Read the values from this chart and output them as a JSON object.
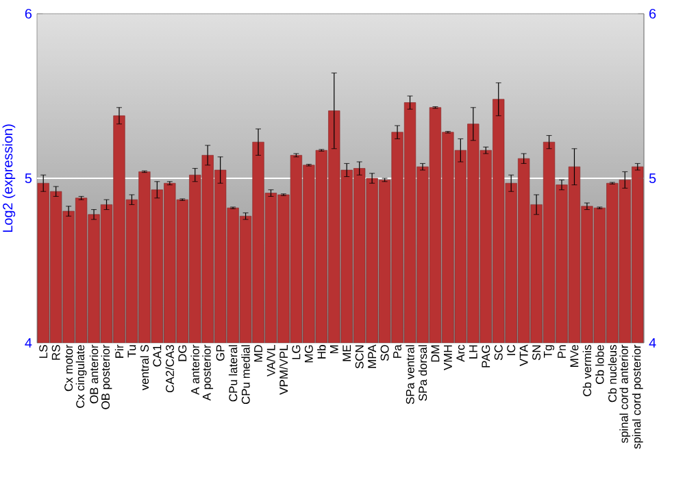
{
  "chart_data": {
    "type": "bar",
    "ylabel": "Log2 (expression)",
    "categories": [
      "LS",
      "RS",
      "Cx motor",
      "Cx cingulate",
      "OB anterior",
      "OB posterior",
      "Pir",
      "Tu",
      "ventral S",
      "CA1",
      "CA2/CA3",
      "DG",
      "A anterior",
      "A posterior",
      "GP",
      "CPu lateral",
      "CPu medial",
      "MD",
      "VA/VL",
      "VPM/VPL",
      "LG",
      "MG",
      "Hb",
      "M",
      "ME",
      "SCN",
      "MPA",
      "SO",
      "Pa",
      "SPa ventral",
      "SPa dorsal",
      "DM",
      "VMH",
      "Arc",
      "LH",
      "PAG",
      "SC",
      "IC",
      "VTA",
      "SN",
      "Tg",
      "Pn",
      "MVe",
      "Cb vermis",
      "Cb lobe",
      "Cb nucleus",
      "spinal cord anterior",
      "spinal cord posterior"
    ],
    "values": [
      4.97,
      4.92,
      4.8,
      4.88,
      4.78,
      4.84,
      5.38,
      4.87,
      5.04,
      4.93,
      4.97,
      4.87,
      5.02,
      5.14,
      5.05,
      4.82,
      4.77,
      5.22,
      4.91,
      4.9,
      5.14,
      5.08,
      5.17,
      5.41,
      5.05,
      5.06,
      5.0,
      4.99,
      5.28,
      5.46,
      5.07,
      5.43,
      5.28,
      5.17,
      5.33,
      5.17,
      5.48,
      4.97,
      5.12,
      4.84,
      5.22,
      4.96,
      5.07,
      4.83,
      4.82,
      4.97,
      4.99,
      5.07
    ],
    "errors": [
      0.05,
      0.03,
      0.03,
      0.01,
      0.03,
      0.03,
      0.05,
      0.03,
      0.005,
      0.05,
      0.01,
      0.005,
      0.04,
      0.06,
      0.08,
      0.005,
      0.02,
      0.08,
      0.02,
      0.005,
      0.01,
      0.005,
      0.005,
      0.23,
      0.04,
      0.04,
      0.03,
      0.01,
      0.04,
      0.04,
      0.02,
      0.005,
      0.005,
      0.07,
      0.1,
      0.02,
      0.1,
      0.05,
      0.03,
      0.06,
      0.04,
      0.03,
      0.11,
      0.02,
      0.005,
      0.005,
      0.05,
      0.02
    ],
    "color": "#b83232",
    "ylim": [
      4,
      6
    ],
    "yticks": [
      4,
      5,
      6
    ],
    "y2lim": [
      4,
      6
    ],
    "y2ticks": [
      4,
      5,
      6
    ],
    "ref_lines": [
      {
        "axis": "y",
        "value": 5,
        "color": "#ffffff"
      }
    ]
  }
}
